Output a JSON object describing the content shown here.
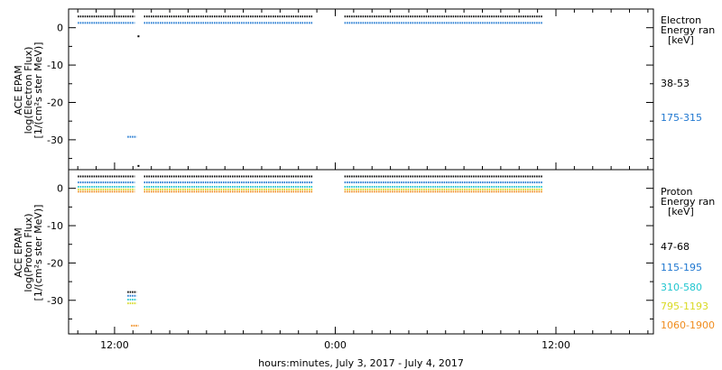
{
  "chart_data": [
    {
      "type": "scatter",
      "ylabel": [
        "ACE EPAM",
        "log(Electron Flux)",
        "[1/(cm²s ster MeV)]"
      ],
      "legend_title": [
        "Electron",
        "Energy ran",
        "[keV]"
      ],
      "yticks": [
        0,
        -10,
        -20,
        -30
      ],
      "ylim": [
        -38,
        5
      ],
      "series": [
        {
          "name": "38-53",
          "color": "#000000",
          "level": 3.0,
          "segments": [
            [
              10.0,
              13.1
            ],
            [
              13.6,
              22.8
            ],
            [
              24.5,
              35.3
            ]
          ]
        },
        {
          "name": "175-315",
          "color": "#1f77d0",
          "level": 1.3,
          "segments": [
            [
              10.0,
              13.1
            ],
            [
              13.6,
              22.8
            ],
            [
              24.5,
              35.3
            ]
          ]
        }
      ],
      "outliers": [
        {
          "series": "175-315",
          "x_range": [
            12.7,
            13.2
          ],
          "y": -29.2
        },
        {
          "series": "38-53",
          "x": 13.3,
          "y": -37.0
        },
        {
          "series": "38-53",
          "x": 13.3,
          "y": -2.3
        }
      ]
    },
    {
      "type": "scatter",
      "ylabel": [
        "ACE EPAM",
        "log(Proton Flux)",
        "[1/(cm²s ster MeV)]"
      ],
      "legend_title": [
        "Proton",
        "Energy ran",
        "[keV]"
      ],
      "yticks": [
        0,
        -10,
        -20,
        -30
      ],
      "ylim": [
        -39,
        5
      ],
      "series": [
        {
          "name": "47-68",
          "color": "#000000",
          "level": 3.2,
          "segments": [
            [
              10.0,
              13.1
            ],
            [
              13.6,
              22.8
            ],
            [
              24.5,
              35.3
            ]
          ]
        },
        {
          "name": "115-195",
          "color": "#1f77d0",
          "level": 1.6,
          "segments": [
            [
              10.0,
              13.1
            ],
            [
              13.6,
              22.8
            ],
            [
              24.5,
              35.3
            ]
          ]
        },
        {
          "name": "310-580",
          "color": "#21c6cf",
          "level": 0.4,
          "segments": [
            [
              10.0,
              13.1
            ],
            [
              13.6,
              22.8
            ],
            [
              24.5,
              35.3
            ]
          ]
        },
        {
          "name": "795-1193",
          "color": "#d9d923",
          "level": -0.3,
          "segments": [
            [
              10.0,
              13.1
            ],
            [
              13.6,
              22.8
            ],
            [
              24.5,
              35.3
            ]
          ]
        },
        {
          "name": "1060-1900",
          "color": "#f08c1e",
          "level": -0.9,
          "segments": [
            [
              10.0,
              13.1
            ],
            [
              13.6,
              22.8
            ],
            [
              24.5,
              35.3
            ]
          ]
        }
      ],
      "outliers": [
        {
          "series": "47-68",
          "x_range": [
            12.7,
            13.2
          ],
          "y": -27.8
        },
        {
          "series": "115-195",
          "x_range": [
            12.7,
            13.2
          ],
          "y": -28.8
        },
        {
          "series": "310-580",
          "x_range": [
            12.7,
            13.2
          ],
          "y": -29.8
        },
        {
          "series": "795-1193",
          "x_range": [
            12.7,
            13.2
          ],
          "y": -30.8
        },
        {
          "series": "1060-1900",
          "x_range": [
            12.9,
            13.3
          ],
          "y": -36.8
        }
      ]
    }
  ],
  "x_axis": {
    "xlim": [
      9.5,
      41.3
    ],
    "ticks": [
      {
        "x": 12,
        "label": "12:00"
      },
      {
        "x": 24,
        "label": "0:00"
      },
      {
        "x": 36,
        "label": "12:00"
      }
    ],
    "minor_ticks": [
      10,
      11,
      13,
      14,
      15,
      16,
      17,
      18,
      19,
      20,
      21,
      22,
      23,
      25,
      26,
      27,
      28,
      29,
      30,
      31,
      32,
      33,
      34,
      35,
      37,
      38,
      39,
      40,
      41
    ],
    "label": "hours:minutes, July  3, 2017 - July  4, 2017"
  }
}
